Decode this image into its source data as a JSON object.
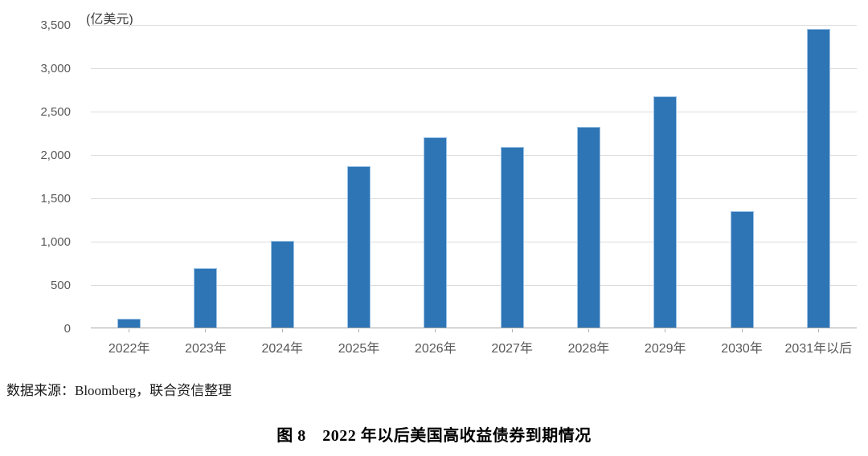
{
  "chart_data": {
    "type": "bar",
    "title": "",
    "unit_label": "(亿美元)",
    "categories": [
      "2022年",
      "2023年",
      "2024年",
      "2025年",
      "2026年",
      "2027年",
      "2028年",
      "2029年",
      "2030年",
      "2031年以后"
    ],
    "values": [
      100,
      690,
      1000,
      1870,
      2200,
      2090,
      2320,
      2670,
      1350,
      3450
    ],
    "xlabel": "",
    "ylabel": "",
    "ylim": [
      0,
      3500
    ],
    "ytick_step": 500,
    "ytick_labels": [
      "0",
      "500",
      "1,000",
      "1,500",
      "2,000",
      "2,500",
      "3,000",
      "3,500"
    ],
    "grid": true,
    "legend": "none",
    "bar_color": "#2e75b6",
    "bar_border_color": "#9dc3e6",
    "gridline_color": "#dcdcdc",
    "axis_line_color": "#a6a6a6",
    "tick_label_color": "#595959"
  },
  "source_note": "数据来源：Bloomberg，联合资信整理",
  "caption": "图 8　2022 年以后美国高收益债券到期情况"
}
